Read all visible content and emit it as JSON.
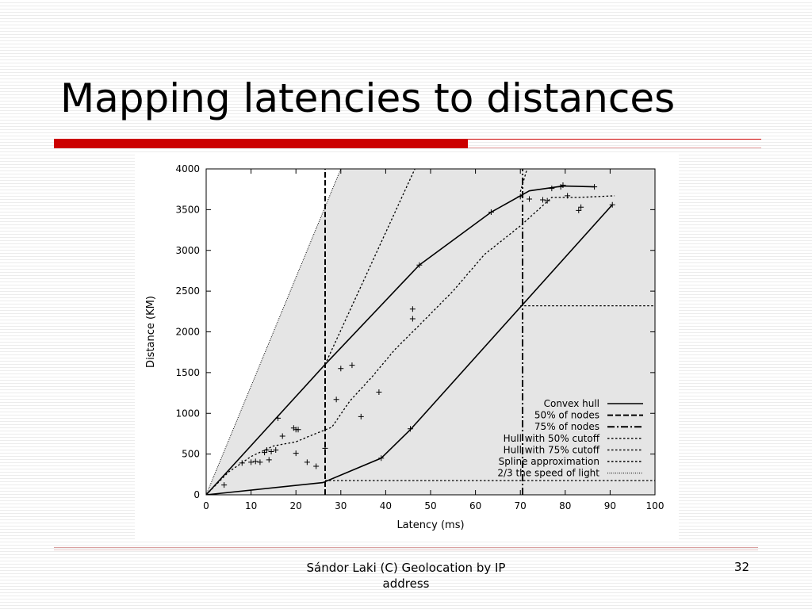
{
  "slide": {
    "title": "Mapping latencies to distances",
    "footer_line1": "Sándor Laki (C) Geolocation by IP",
    "footer_line2": "address",
    "page_number": "32"
  },
  "chart_data": {
    "type": "line",
    "title": "",
    "xlabel": "Latency (ms)",
    "ylabel": "Distance (KM)",
    "xlim": [
      0,
      100
    ],
    "ylim": [
      0,
      4000
    ],
    "xticks": [
      0,
      10,
      20,
      30,
      40,
      50,
      60,
      70,
      80,
      90,
      100
    ],
    "yticks": [
      0,
      500,
      1000,
      1500,
      2000,
      2500,
      3000,
      3500,
      4000
    ],
    "plot_background": "#e5e5e5",
    "grid": false,
    "legend_position": "bottom-right",
    "legend": [
      {
        "label": "Convex hull",
        "style": "solid"
      },
      {
        "label": "50% of nodes",
        "style": "dashed"
      },
      {
        "label": "75% of nodes",
        "style": "dashdot"
      },
      {
        "label": "Hull with 50% cutoff",
        "style": "dotted"
      },
      {
        "label": "Hull with 75% cutoff",
        "style": "dotted"
      },
      {
        "label": "Spline approximation",
        "style": "dotted"
      },
      {
        "label": "2/3 the speed of light",
        "style": "dense-dotted"
      }
    ],
    "series": [
      {
        "role": "convex-hull-upper",
        "x": [
          0,
          26.5,
          47.5,
          63.5,
          72,
          79.5,
          86.5
        ],
        "y": [
          0,
          1600,
          2820,
          3470,
          3730,
          3790,
          3780
        ]
      },
      {
        "role": "convex-hull-lower",
        "x": [
          0,
          26,
          39,
          45.5,
          90.5
        ],
        "y": [
          0,
          150,
          450,
          800,
          3560
        ]
      },
      {
        "role": "cutoff-50-upper",
        "x": [
          26.5,
          46.5
        ],
        "y": [
          1600,
          4000
        ]
      },
      {
        "role": "cutoff-75-upper",
        "x": [
          70,
          71.5
        ],
        "y": [
          3720,
          4000
        ]
      },
      {
        "role": "cutoff-50-horizontal",
        "x": [
          26.5,
          100
        ],
        "y": [
          175,
          175
        ]
      },
      {
        "role": "cutoff-75-horizontal",
        "x": [
          70,
          100
        ],
        "y": [
          2320,
          2320
        ]
      },
      {
        "role": "spline",
        "x": [
          0,
          5,
          10,
          15,
          20,
          23,
          28,
          32,
          37,
          42,
          48,
          55,
          62,
          70,
          77,
          83,
          91
        ],
        "y": [
          0,
          280,
          470,
          600,
          650,
          720,
          830,
          1150,
          1450,
          1780,
          2110,
          2500,
          2950,
          3300,
          3650,
          3650,
          3670
        ]
      },
      {
        "role": "speed-of-light",
        "x": [
          0,
          30
        ],
        "y": [
          0,
          4000
        ]
      },
      {
        "role": "nodes-50",
        "x": [
          26.5,
          26.5
        ],
        "y": [
          0,
          4000
        ]
      },
      {
        "role": "nodes-75",
        "x": [
          70.5,
          70.5
        ],
        "y": [
          0,
          4000
        ]
      }
    ],
    "points": [
      [
        4,
        120
      ],
      [
        8,
        390
      ],
      [
        10,
        400
      ],
      [
        11,
        410
      ],
      [
        12,
        400
      ],
      [
        13,
        520
      ],
      [
        13.5,
        550
      ],
      [
        14,
        430
      ],
      [
        14.5,
        530
      ],
      [
        15.5,
        550
      ],
      [
        16,
        940
      ],
      [
        17,
        720
      ],
      [
        19.5,
        820
      ],
      [
        20,
        800
      ],
      [
        20.5,
        800
      ],
      [
        20,
        510
      ],
      [
        22.5,
        400
      ],
      [
        24.5,
        350
      ],
      [
        26.5,
        570
      ],
      [
        29,
        1170
      ],
      [
        30,
        1550
      ],
      [
        32.5,
        1590
      ],
      [
        34.5,
        960
      ],
      [
        38.5,
        1260
      ],
      [
        39,
        450
      ],
      [
        45.5,
        810
      ],
      [
        46,
        2280
      ],
      [
        46,
        2160
      ],
      [
        47.5,
        2820
      ],
      [
        63.5,
        3470
      ],
      [
        70,
        3660
      ],
      [
        72,
        3630
      ],
      [
        75,
        3620
      ],
      [
        76,
        3610
      ],
      [
        77,
        3760
      ],
      [
        79,
        3780
      ],
      [
        79.5,
        3800
      ],
      [
        80.5,
        3670
      ],
      [
        83,
        3490
      ],
      [
        83.5,
        3530
      ],
      [
        86.5,
        3780
      ],
      [
        90.5,
        3560
      ]
    ]
  }
}
